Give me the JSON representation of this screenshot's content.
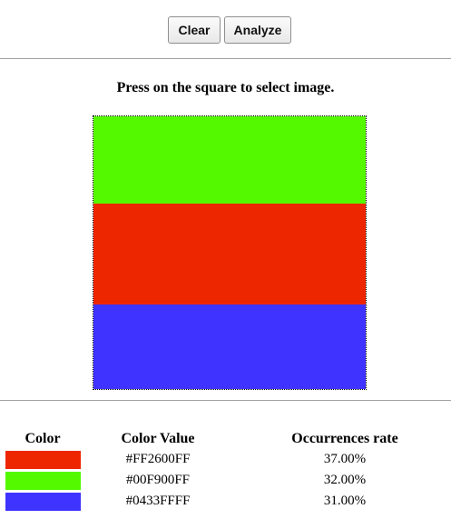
{
  "toolbar": {
    "clear_label": "Clear",
    "analyze_label": "Analyze"
  },
  "instruction": "Press on the square to select image.",
  "image": {
    "bands": [
      {
        "color": "#54F900",
        "share": 0.32
      },
      {
        "color": "#EE2600",
        "share": 0.37
      },
      {
        "color": "#3F33FF",
        "share": 0.31
      }
    ]
  },
  "results": {
    "headers": {
      "color": "Color",
      "value": "Color Value",
      "rate": "Occurrences rate"
    },
    "rows": [
      {
        "swatch": "#EE2600",
        "value": "#FF2600FF",
        "rate": "37.00%"
      },
      {
        "swatch": "#54F900",
        "value": "#00F900FF",
        "rate": "32.00%"
      },
      {
        "swatch": "#3F33FF",
        "value": "#0433FFFF",
        "rate": "31.00%"
      }
    ]
  }
}
